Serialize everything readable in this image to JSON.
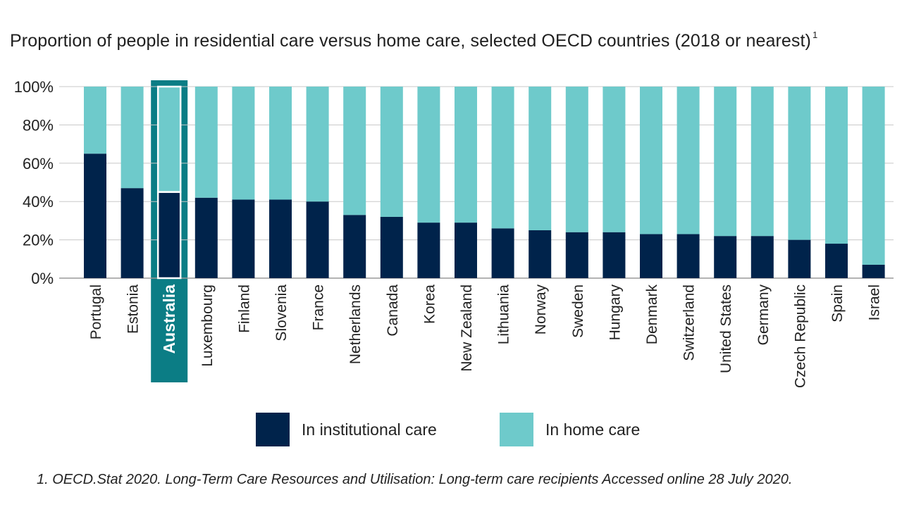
{
  "chart_data": {
    "type": "bar",
    "stacked": true,
    "title": "Proportion of people in residential care versus home care, selected OECD countries (2018 or nearest)",
    "title_footnote_marker": "1",
    "xlabel": "",
    "ylabel": "",
    "ylim": [
      0,
      100
    ],
    "y_ticks": [
      "0%",
      "20%",
      "40%",
      "60%",
      "80%",
      "100%"
    ],
    "grid": true,
    "highlighted_category": "Australia",
    "categories": [
      "Portugal",
      "Estonia",
      "Australia",
      "Luxembourg",
      "Finland",
      "Slovenia",
      "France",
      "Netherlands",
      "Canada",
      "Korea",
      "New Zealand",
      "Lithuania",
      "Norway",
      "Sweden",
      "Hungary",
      "Denmark",
      "Switzerland",
      "United States",
      "Germany",
      "Czech Republic",
      "Spain",
      "Israel"
    ],
    "series": [
      {
        "name": "In institutional care",
        "color": "#00234b",
        "values": [
          65,
          47,
          45,
          42,
          41,
          41,
          40,
          33,
          32,
          29,
          29,
          26,
          25,
          24,
          24,
          23,
          23,
          22,
          22,
          20,
          18,
          7
        ]
      },
      {
        "name": "In home care",
        "color": "#6ecacb",
        "values": [
          35,
          53,
          55,
          58,
          59,
          59,
          60,
          67,
          68,
          71,
          71,
          74,
          75,
          76,
          76,
          77,
          77,
          78,
          78,
          80,
          82,
          93
        ]
      }
    ],
    "legend": {
      "placement": "bottom",
      "items": [
        "In institutional care",
        "In home care"
      ]
    },
    "footnote": "1. OECD.Stat 2020. Long-Term Care Resources and Utilisation: Long-term care recipients Accessed online 28 July 2020."
  },
  "colors": {
    "institutional": "#00234b",
    "home": "#6ecacb",
    "highlight": "#0b7d85",
    "grid": "#c8c8c8",
    "axis": "#9a9a9a"
  }
}
